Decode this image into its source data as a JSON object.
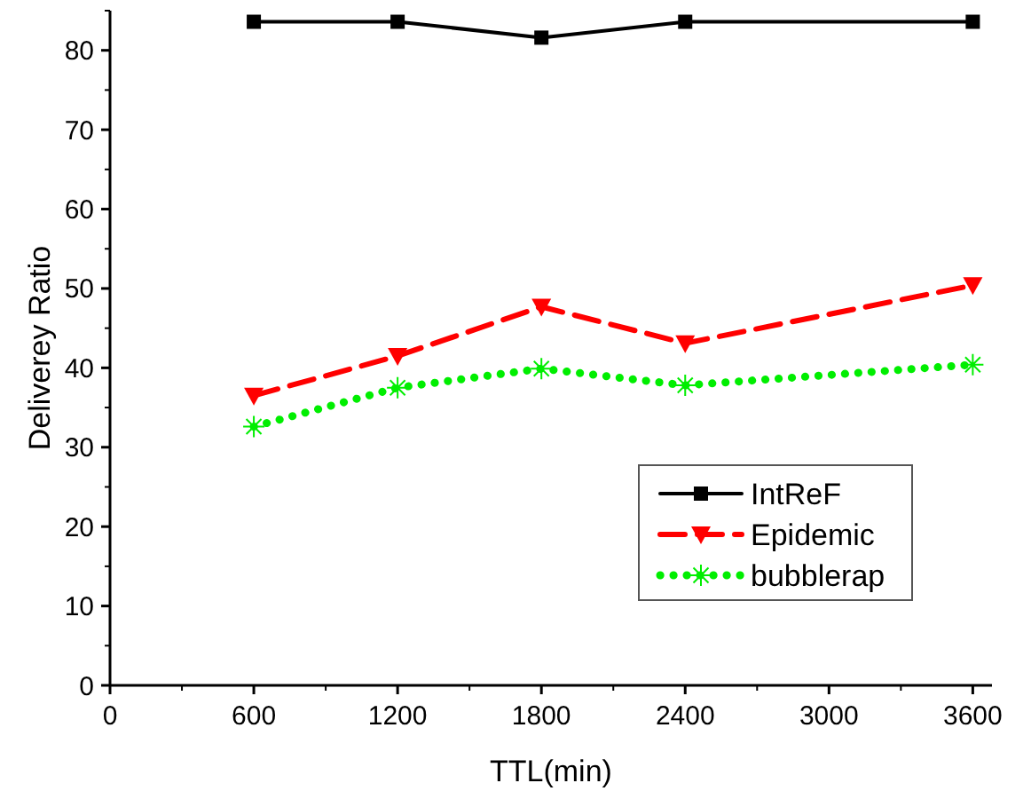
{
  "chart_data": {
    "type": "line",
    "xlabel": "TTL(min)",
    "ylabel": "Deliverey Ratio",
    "x": [
      600,
      1200,
      1800,
      2400,
      3600
    ],
    "xlim": [
      0,
      3680
    ],
    "xticks": [
      0,
      600,
      1200,
      1800,
      2400,
      3000,
      3600
    ],
    "ylim": [
      0,
      85
    ],
    "yticks": [
      0,
      10,
      20,
      30,
      40,
      50,
      60,
      70,
      80
    ],
    "grid": false,
    "legend": "bottom right",
    "series": [
      {
        "name": "IntReF",
        "color": "#000000",
        "marker": "square",
        "line_style": "solid",
        "values": [
          83.6,
          83.6,
          81.6,
          83.6,
          83.6
        ]
      },
      {
        "name": "Epidemic",
        "color": "#ff0000",
        "marker": "triangle",
        "line_style": "dashed",
        "values": [
          36.5,
          41.5,
          47.7,
          43.1,
          50.4
        ]
      },
      {
        "name": "bubblerap",
        "color": "#00ee00",
        "marker": "cross",
        "line_style": "dotted",
        "values": [
          32.6,
          37.5,
          39.9,
          37.8,
          40.4
        ]
      }
    ]
  }
}
